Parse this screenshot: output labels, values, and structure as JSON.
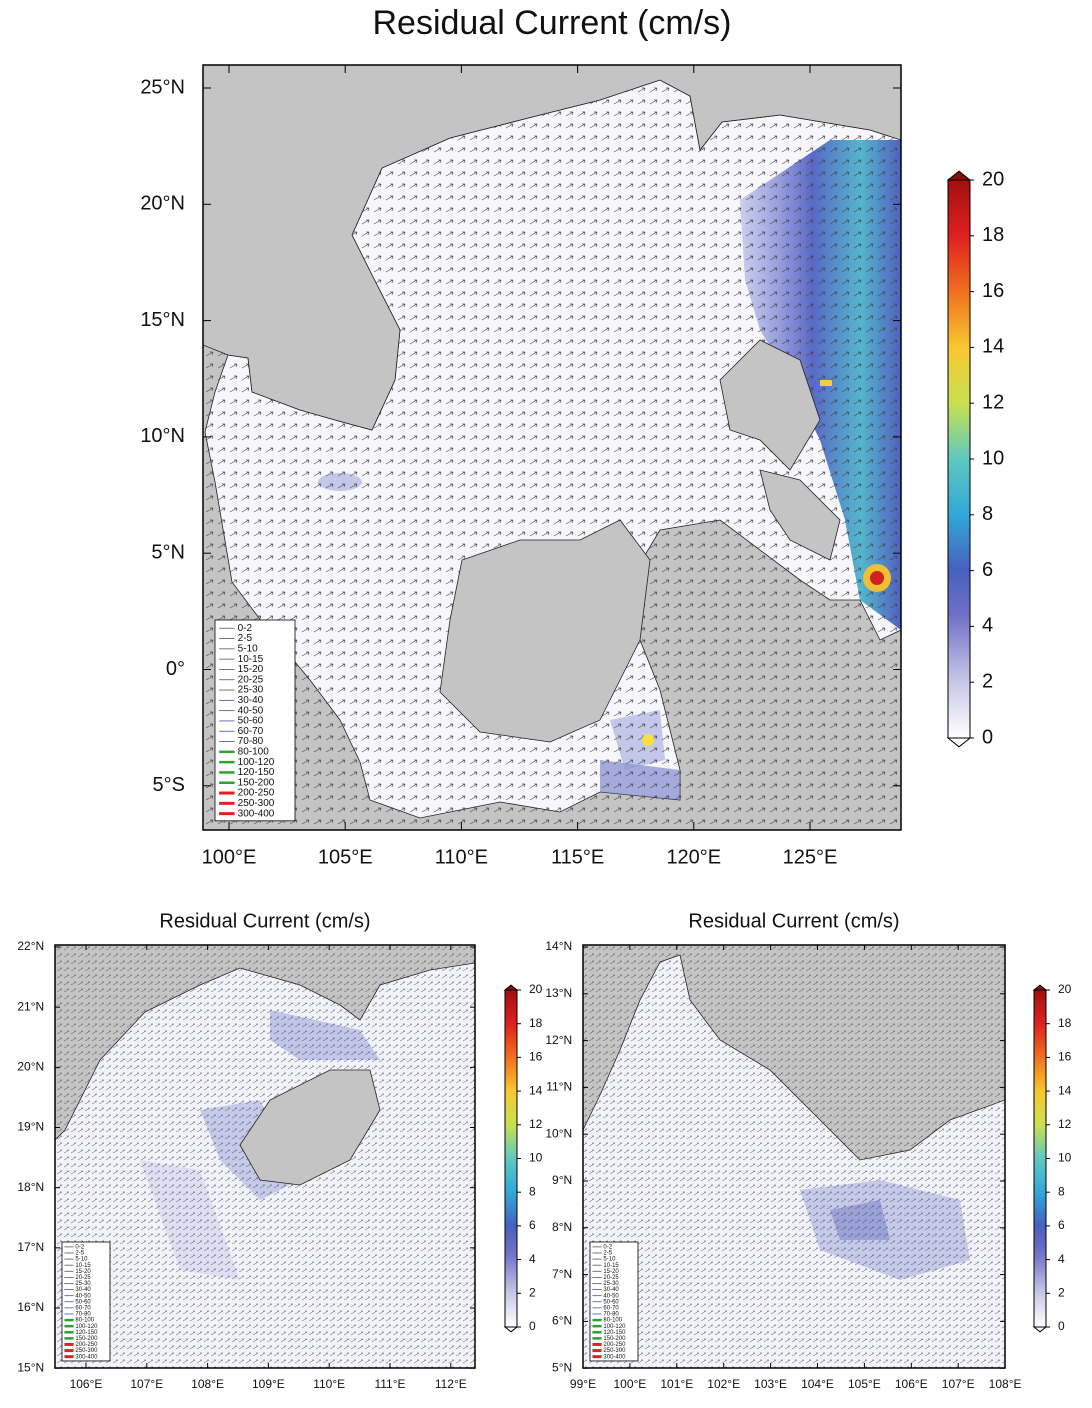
{
  "maps": [
    {
      "title": "Residual Current (cm/s)",
      "lon_ticks": [
        "100°E",
        "105°E",
        "110°E",
        "115°E",
        "120°E",
        "125°E"
      ],
      "lat_ticks": [
        "25°N",
        "20°N",
        "15°N",
        "10°N",
        "5°N",
        "0°",
        "5°S"
      ],
      "colorbar_ticks": [
        0,
        2,
        4,
        6,
        8,
        10,
        12,
        14,
        16,
        18,
        20
      ]
    },
    {
      "title": "Residual Current (cm/s)",
      "lon_ticks": [
        "106°E",
        "107°E",
        "108°E",
        "109°E",
        "110°E",
        "111°E",
        "112°E"
      ],
      "lat_ticks": [
        "22°N",
        "21°N",
        "20°N",
        "19°N",
        "18°N",
        "17°N",
        "16°N",
        "15°N"
      ],
      "colorbar_ticks": [
        0,
        2,
        4,
        6,
        8,
        10,
        12,
        14,
        16,
        18,
        20
      ]
    },
    {
      "title": "Residual Current (cm/s)",
      "lon_ticks": [
        "99°E",
        "100°E",
        "101°E",
        "102°E",
        "103°E",
        "104°E",
        "105°E",
        "106°E",
        "107°E",
        "108°E"
      ],
      "lat_ticks": [
        "14°N",
        "13°N",
        "12°N",
        "11°N",
        "10°N",
        "9°N",
        "8°N",
        "7°N",
        "6°N",
        "5°N"
      ],
      "colorbar_ticks": [
        0,
        2,
        4,
        6,
        8,
        10,
        12,
        14,
        16,
        18,
        20
      ]
    }
  ],
  "vector_legend": [
    "0-2",
    "2-5",
    "5-10",
    "10-15",
    "15-20",
    "20-25",
    "25-30",
    "30-40",
    "40-50",
    "50-60",
    "60-70",
    "70-80",
    "80-100",
    "100-120",
    "120-150",
    "150-200",
    "200-250",
    "250-300",
    "300-400"
  ]
}
